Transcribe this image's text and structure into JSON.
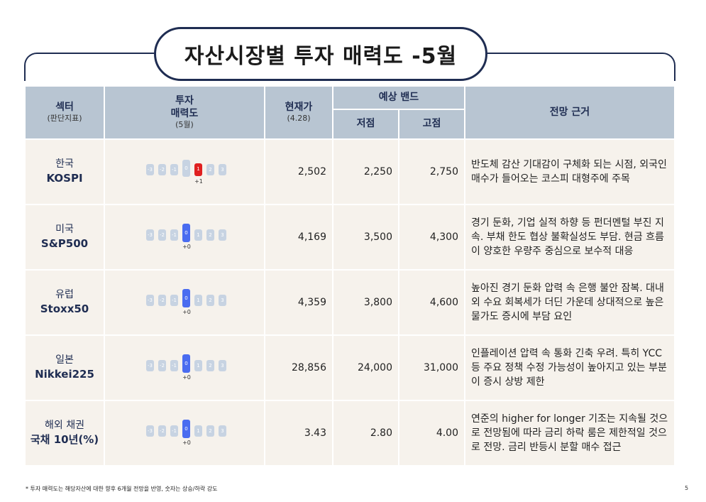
{
  "title": "자산시장별 투자 매력도 -5월",
  "headers": {
    "sector": "섹터",
    "sector_sub": "(판단지표)",
    "attract_1": "투자",
    "attract_2": "매력도",
    "attract_sub": "(5월)",
    "price": "현재가",
    "price_sub": "(4.28)",
    "band": "예상 밴드",
    "low": "저점",
    "high": "고점",
    "basis": "전망 근거"
  },
  "scale_ticks": [
    "-3",
    "-2",
    "-1",
    "0",
    "1",
    "2",
    "3"
  ],
  "rows": [
    {
      "region": "한국",
      "index": "KOSPI",
      "score": 1,
      "score_label": "+1",
      "price": "2,502",
      "low": "2,250",
      "high": "2,750",
      "basis": "반도체 감산 기대감이 구체화 되는 시점, 외국인 매수가 들어오는 코스피 대형주에 주목"
    },
    {
      "region": "미국",
      "index": "S&P500",
      "score": 0,
      "score_label": "+0",
      "price": "4,169",
      "low": "3,500",
      "high": "4,300",
      "basis": "경기 둔화, 기업 실적 하향 등 펀더멘털 부진 지속. 부채 한도 협상 불확실성도 부담. 현금 흐름이 양호한 우량주 중심으로 보수적 대응"
    },
    {
      "region": "유럽",
      "index": "Stoxx50",
      "score": 0,
      "score_label": "+0",
      "price": "4,359",
      "low": "3,800",
      "high": "4,600",
      "basis": "높아진 경기 둔화 압력 속 은행 불안 잠복. 대내외 수요 회복세가 더딘 가운데 상대적으로 높은 물가도 증시에 부담 요인"
    },
    {
      "region": "일본",
      "index": "Nikkei225",
      "score": 0,
      "score_label": "+0",
      "price": "28,856",
      "low": "24,000",
      "high": "31,000",
      "basis": "인플레이션 압력 속 통화 긴축 우려. 특히 YCC 등 주요 정책 수정 가능성이 높아지고 있는 부분이 증시 상방 제한"
    },
    {
      "region": "해외 채권",
      "index": "국채 10년(%)",
      "score": 0,
      "score_label": "+0",
      "price": "3.43",
      "low": "2.80",
      "high": "4.00",
      "basis": "연준의 higher for longer 기조는 지속될 것으로 전망됨에 따라 금리 하락 룸은 제한적일 것으로 전망. 금리 반등시 분할 매수 접근"
    }
  ],
  "footnote": "* 투자 매력도는 해당자산에 대한 향후 6개월 전망을 반영, 숫자는 상승/하락 강도",
  "page_number": "5",
  "colors": {
    "navy": "#1f2d52",
    "header_bg": "#b8c5d2",
    "row_bg": "#f6f2ec",
    "positive": "#e02020",
    "neutral": "#4a6cf0",
    "inactive": "#c7d3e2"
  }
}
